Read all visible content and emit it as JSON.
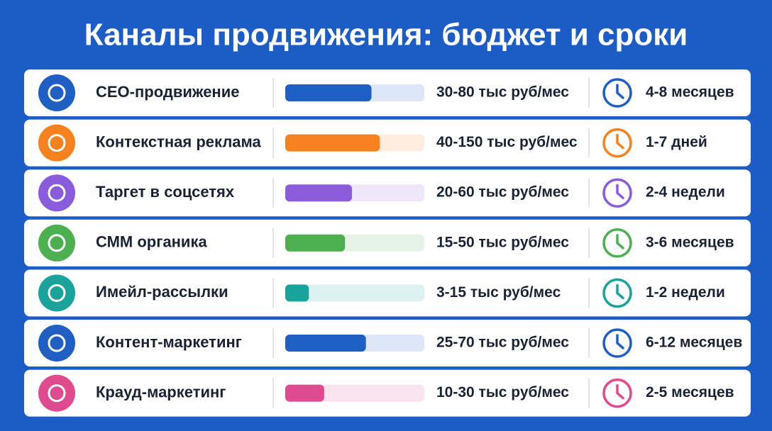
{
  "title": "Каналы продвижения: бюджет и сроки",
  "rows": [
    {
      "name": "СЕО-продвижение",
      "budget": "30-80 тыс руб/мес",
      "duration": "4-8 месяцев",
      "color": "#1f5fc4",
      "fill": 62
    },
    {
      "name": "Контекстная реклама",
      "budget": "40-150 тыс руб/мес",
      "duration": "1-7 дней",
      "color": "#f5821f",
      "fill": 68
    },
    {
      "name": "Таргет в соцсетях",
      "budget": "20-60 тыс руб/мес",
      "duration": "2-4 недели",
      "color": "#8a5cdb",
      "fill": 48
    },
    {
      "name": "СММ органика",
      "budget": "15-50 тыс руб/мес",
      "duration": "3-6 месяцев",
      "color": "#4caf50",
      "fill": 43
    },
    {
      "name": "Имейл-рассылки",
      "budget": "3-15 тыс руб/мес",
      "duration": "1-2 недели",
      "color": "#1aa39a",
      "fill": 17
    },
    {
      "name": "Контент-маркетинг",
      "budget": "25-70 тыс руб/мес",
      "duration": "6-12 месяцев",
      "color": "#1f5fc4",
      "fill": 58
    },
    {
      "name": "Крауд-маркетинг",
      "budget": "10-30 тыс руб/мес",
      "duration": "2-5 месяцев",
      "color": "#e04a8f",
      "fill": 28
    }
  ]
}
